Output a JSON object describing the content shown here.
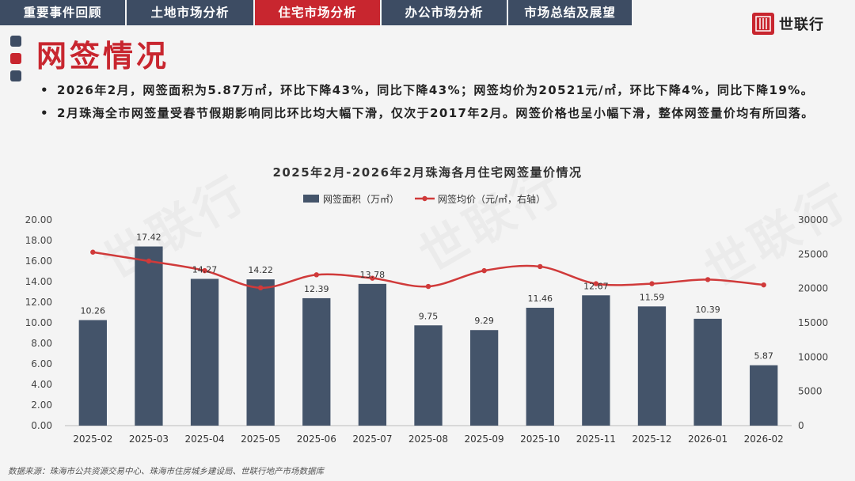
{
  "tabs": [
    {
      "label": "重要事件回顾",
      "active": false
    },
    {
      "label": "土地市场分析",
      "active": false
    },
    {
      "label": "住宅市场分析",
      "active": true
    },
    {
      "label": "办公市场分析",
      "active": false
    },
    {
      "label": "市场总结及展望",
      "active": false
    }
  ],
  "logo": {
    "text": "世联行",
    "watermark": "世联行"
  },
  "section_title": "网签情况",
  "bullets": [
    "2026年2月，网签面积为5.87万㎡，环比下降43%，同比下降43%；网签均价为20521元/㎡，环比下降4%，同比下降19%。",
    "2月珠海全市网签量受春节假期影响同比环比均大幅下滑，仅次于2017年2月。网签价格也呈小幅下滑，整体网签量价均有所回落。"
  ],
  "bullet_marker": "•",
  "footer": "数据来源：珠海市公共资源交易中心、珠海市住房城乡建设局、世联行地产市场数据库",
  "colors": {
    "accent": "#c8262f",
    "navy": "#3d4c63",
    "bar": "#44546a",
    "line": "#d03a3a"
  },
  "chart_data": {
    "type": "bar",
    "title": "2025年2月-2026年2月珠海各月住宅网签量价情况",
    "categories": [
      "2025-02",
      "2025-03",
      "2025-04",
      "2025-05",
      "2025-06",
      "2025-07",
      "2025-08",
      "2025-09",
      "2025-10",
      "2025-11",
      "2025-12",
      "2026-01",
      "2026-02"
    ],
    "series": [
      {
        "name": "网签面积（万㎡）",
        "type": "bar",
        "axis": "left",
        "values": [
          10.26,
          17.42,
          14.27,
          14.22,
          12.39,
          13.78,
          9.75,
          9.29,
          11.46,
          12.67,
          11.59,
          10.39,
          5.87
        ],
        "labels": [
          "10.26",
          "17.42",
          "14.27",
          "14.22",
          "12.39",
          "13.78",
          "9.75",
          "9.29",
          "11.46",
          "12.67",
          "11.59",
          "10.39",
          "5.87"
        ]
      },
      {
        "name": "网签均价（元/㎡，右轴）",
        "type": "line",
        "axis": "right",
        "values": [
          25300,
          24000,
          22600,
          20100,
          22000,
          21500,
          20300,
          22600,
          23200,
          20700,
          20700,
          21300,
          20521
        ]
      }
    ],
    "y_left": {
      "min": 0,
      "max": 20,
      "step": 2,
      "ticks": [
        "0.00",
        "2.00",
        "4.00",
        "6.00",
        "8.00",
        "10.00",
        "12.00",
        "14.00",
        "16.00",
        "18.00",
        "20.00"
      ]
    },
    "y_right": {
      "min": 0,
      "max": 30000,
      "step": 5000,
      "ticks": [
        "0",
        "5000",
        "10000",
        "15000",
        "20000",
        "25000",
        "30000"
      ]
    },
    "legend": "top-center",
    "grid": false
  }
}
